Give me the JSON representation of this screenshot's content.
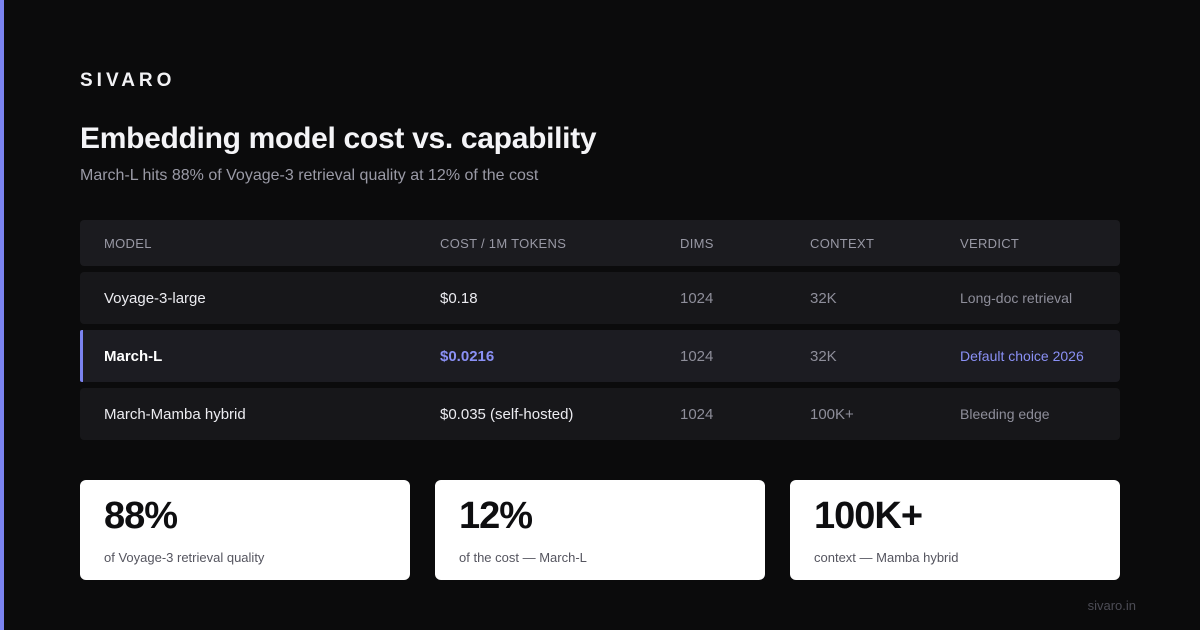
{
  "brand": "SIVARO",
  "title": "Embedding model cost vs. capability",
  "subtitle": "March-L hits 88% of Voyage-3 retrieval quality at 12% of the cost",
  "table": {
    "headers": {
      "model": "MODEL",
      "cost": "COST / 1M TOKENS",
      "dims": "DIMS",
      "context": "CONTEXT",
      "verdict": "VERDICT"
    },
    "rows": [
      {
        "model": "Voyage-3-large",
        "cost": "$0.18",
        "dims": "1024",
        "context": "32K",
        "verdict": "Long-doc retrieval"
      },
      {
        "model": "March-L",
        "cost": "$0.0216",
        "dims": "1024",
        "context": "32K",
        "verdict": "Default choice 2026"
      },
      {
        "model": "March-Mamba hybrid",
        "cost": "$0.035 (self-hosted)",
        "dims": "1024",
        "context": "100K+",
        "verdict": "Bleeding edge"
      }
    ]
  },
  "stats": [
    {
      "value": "88%",
      "label": "of Voyage-3 retrieval quality"
    },
    {
      "value": "12%",
      "label": "of the cost — March-L"
    },
    {
      "value": "100K+",
      "label": "context — Mamba hybrid"
    }
  ],
  "footer": "sivaro.in",
  "colors": {
    "background": "#0b0b0c",
    "accent": "#7b83f0",
    "row": "#17171a",
    "card": "#ffffff"
  }
}
